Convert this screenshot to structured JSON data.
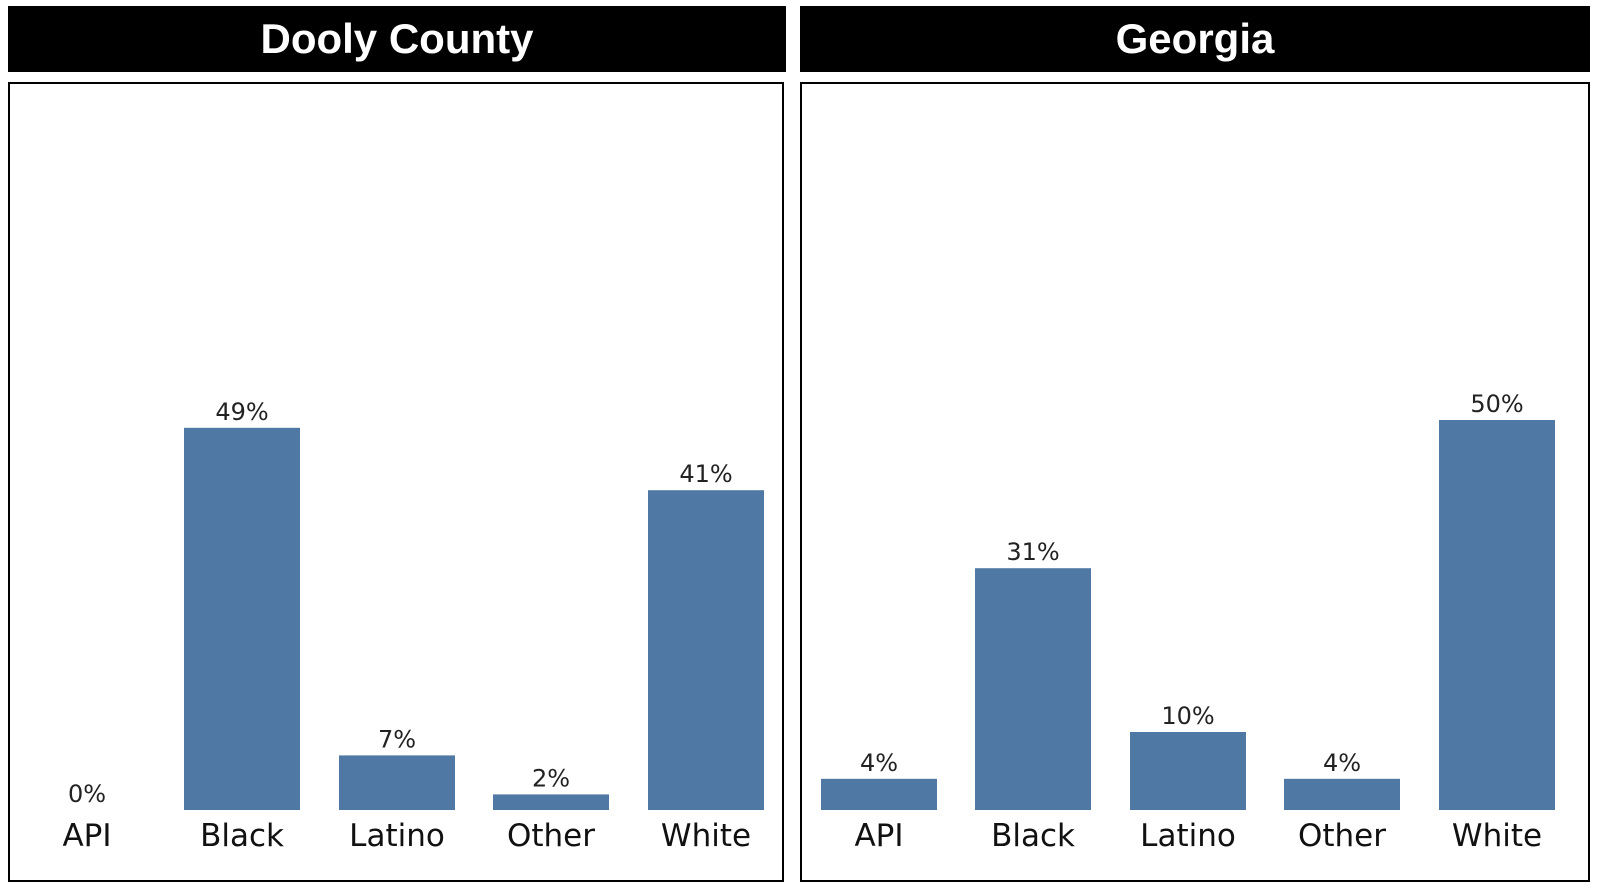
{
  "chart_data": [
    {
      "type": "bar",
      "title": "Dooly County",
      "categories": [
        "API",
        "Black",
        "Latino",
        "Other",
        "White"
      ],
      "values": [
        0,
        49,
        7,
        2,
        41
      ],
      "labels": [
        "0%",
        "49%",
        "7%",
        "2%",
        "41%"
      ],
      "bar_color": "#4f79a4",
      "grid": false
    },
    {
      "type": "bar",
      "title": "Georgia",
      "categories": [
        "API",
        "Black",
        "Latino",
        "Other",
        "White"
      ],
      "values": [
        4,
        31,
        10,
        4,
        50
      ],
      "labels": [
        "4%",
        "31%",
        "10%",
        "4%",
        "50%"
      ],
      "bar_color": "#4f79a4",
      "grid": false
    }
  ]
}
